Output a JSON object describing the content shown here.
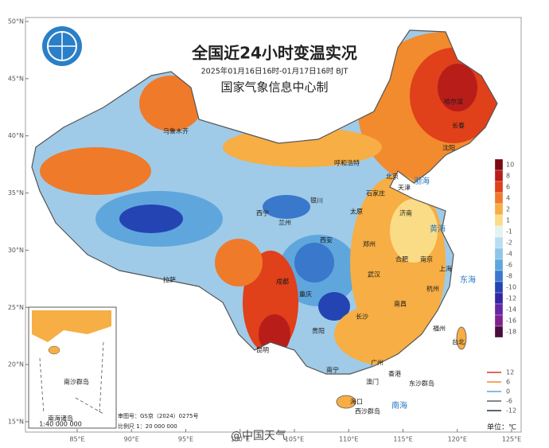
{
  "header": {
    "title": "全国近24小时变温实况",
    "subtitle": "2025年01月16日16时-01月17日16时 BJT",
    "agency": "国家气象信息中心制"
  },
  "lat_ticks": [
    {
      "value": 50,
      "label": "50°N"
    },
    {
      "value": 45,
      "label": "45°N"
    },
    {
      "value": 40,
      "label": "40°N"
    },
    {
      "value": 35,
      "label": "35°N"
    },
    {
      "value": 30,
      "label": "30°N"
    },
    {
      "value": 25,
      "label": "25°N"
    },
    {
      "value": 20,
      "label": "20°N"
    },
    {
      "value": 15,
      "label": "15°N"
    }
  ],
  "lon_ticks": [
    {
      "value": 85,
      "label": "85°E"
    },
    {
      "value": 90,
      "label": "90°E"
    },
    {
      "value": 95,
      "label": "95°E"
    },
    {
      "value": 100,
      "label": "100°E"
    },
    {
      "value": 105,
      "label": "105°E"
    },
    {
      "value": 110,
      "label": "110°E"
    },
    {
      "value": 115,
      "label": "115°E"
    },
    {
      "value": 120,
      "label": "120°E"
    },
    {
      "value": 125,
      "label": "125°E"
    }
  ],
  "color_legend": {
    "values": [
      10,
      8,
      6,
      4,
      2,
      1,
      -1,
      -2,
      -4,
      -6,
      -8,
      -10,
      -12,
      -14,
      -16,
      -18
    ],
    "colors": [
      "#7a0c14",
      "#b81d1a",
      "#e0401a",
      "#ef7a2a",
      "#f6ae45",
      "#fbdc86",
      "#e3f3f1",
      "#b7def0",
      "#8cc6e8",
      "#5fa6dc",
      "#3a78cc",
      "#2444b4",
      "#3526a3",
      "#6428a6",
      "#80228e",
      "#4a0d3c"
    ]
  },
  "contour_legend": {
    "values": [
      12,
      6,
      0,
      -6,
      -12
    ],
    "colors": [
      "#d8322a",
      "#f08a2c",
      "#5aa6e0",
      "#556070",
      "#2a3038"
    ]
  },
  "cities": [
    "乌鲁木齐",
    "呼和浩特",
    "北京",
    "天津",
    "石家庄",
    "太原",
    "济南",
    "银川",
    "西宁",
    "兰州",
    "西安",
    "郑州",
    "合肥",
    "南京",
    "上海",
    "杭州",
    "武汉",
    "成都",
    "重庆",
    "拉萨",
    "长沙",
    "南昌",
    "福州",
    "贵阳",
    "昆明",
    "南宁",
    "广州",
    "香港",
    "澳门",
    "海口",
    "台北",
    "哈尔滨",
    "长春",
    "沈阳"
  ],
  "seas": [
    "渤海",
    "黄海",
    "东海",
    "南海"
  ],
  "islands": [
    "东沙群岛",
    "西沙群岛",
    "南沙群岛"
  ],
  "inset": {
    "title": "南海诸岛",
    "scale": "1:40 000 000"
  },
  "footer": {
    "approval": "审图号：GS京（2024）0275号",
    "scale": "比例尺 1：20 000 000",
    "unit": "单位：℃",
    "watermark": "@中国天气"
  }
}
